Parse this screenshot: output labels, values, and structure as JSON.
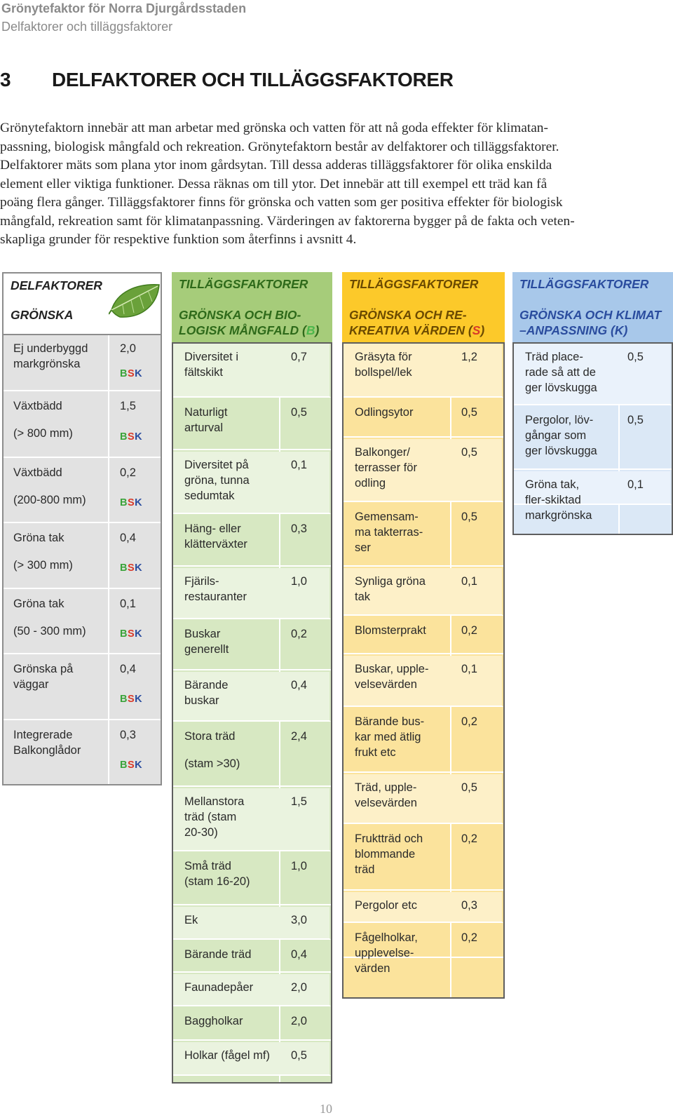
{
  "header": {
    "title": "Grönytefaktor för Norra Djurgårdsstaden",
    "subtitle": "Delfaktorer och tilläggsfaktorer"
  },
  "section": {
    "number": "3",
    "title": "DELFAKTORER OCH TILLÄGGSFAKTORER"
  },
  "intro_lines": [
    "Grönytefaktorn innebär att man arbetar med grönska och vatten för att nå goda effekter för klimatan-",
    "passning, biologisk mångfald och rekreation. Grönytefaktorn består av delfaktorer och tilläggsfaktorer.",
    "Delfaktorer mäts som plana ytor inom gårdsytan. Till dessa adderas tilläggsfaktorer för olika enskilda",
    "element eller viktiga funktioner. Dessa räknas om till ytor. Det innebär att till exempel ett träd kan få",
    "poäng flera gånger. Tilläggsfaktorer finns för grönska och vatten som ger positiva effekter för biologisk",
    "mångfald, rekreation samt för klimatanpassning. Värderingen av faktorerna bygger på de fakta och veten-",
    "skapliga grunder för respektive funktion som återfinns i avsnitt 4."
  ],
  "columns": {
    "delfaktorer": {
      "title": "DELFAKTORER",
      "subtitle": "GRÖNSKA",
      "rows": [
        {
          "label": "Ej underbyggd\nmarkgrönska",
          "value": "2,0"
        },
        {
          "label": "Växtbädd",
          "label2": "(> 800 mm)",
          "value": "1,5"
        },
        {
          "label": "Växtbädd",
          "label2": "(200-800 mm)",
          "value": "0,2"
        },
        {
          "label": "Gröna tak",
          "label2": "(> 300 mm)",
          "value": "0,4"
        },
        {
          "label": "Gröna tak",
          "label2": "(50 - 300 mm)",
          "value": "0,1"
        },
        {
          "label": "Grönska på\nväggar",
          "value": "0,4"
        },
        {
          "label": "Integrerade\nBalkonglådor",
          "value": "0,3"
        }
      ],
      "bsk": {
        "b": "B",
        "s": "S",
        "k": "K"
      },
      "colors": {
        "header": "#ffffff",
        "cell": "#e2e2e2",
        "border": "#8c8c8c"
      }
    },
    "biologisk": {
      "title": "TILLÄGGSFAKTORER",
      "subtitle_a": "GRÖNSKA OCH BIO-",
      "subtitle_b": "LOGISK MÅNGFALD",
      "letter": "B",
      "rows": [
        {
          "label": "Diversitet i\nfältskikt",
          "value": "0,7"
        },
        {
          "label": "Naturligt\narturval",
          "value": "0,5"
        },
        {
          "label": "Diversitet på\ngröna, tunna\nsedumtak",
          "value": "0,1"
        },
        {
          "label": "Häng- eller\nklätterväxter",
          "value": "0,3"
        },
        {
          "label": "Fjärils-\nrestauranter",
          "value": "1,0"
        },
        {
          "label": "Buskar\ngenerellt",
          "value": "0,2"
        },
        {
          "label": "Bärande\nbuskar",
          "value": "0,4"
        },
        {
          "label": "Stora träd",
          "label2": "(stam >30)",
          "value": "2,4"
        },
        {
          "label": "Mellanstora\nträd (stam\n20-30)",
          "value": "1,5"
        },
        {
          "label": "Små  träd\n(stam 16-20)",
          "value": "1,0"
        },
        {
          "label": "Ek",
          "value": "3,0"
        },
        {
          "label": "Bärande träd",
          "value": "0,4"
        },
        {
          "label": "Faunadepåer",
          "value": "2,0"
        },
        {
          "label": "Baggholkar",
          "value": "2,0"
        },
        {
          "label": "Holkar (fågel mf)",
          "value": "0,5"
        }
      ],
      "colors": {
        "header": "#a6cc7a",
        "cell": "#d7e8c2",
        "cell_light": "#eaf3df",
        "letter": "#3aa33a"
      }
    },
    "rekreativa": {
      "title": "TILLÄGGSFAKTORER",
      "subtitle_a": "GRÖNSKA OCH RE-",
      "subtitle_b": "KREATIVA VÄRDEN",
      "letter": "S",
      "rows": [
        {
          "label": "Gräsyta  för\nbollspel/lek",
          "value": "1,2"
        },
        {
          "label": "Odlingsytor",
          "value": "0,5"
        },
        {
          "label": "Balkonger/\nterrasser för\nodling",
          "value": "0,5"
        },
        {
          "label": "Gemensam-\nma takterras-\nser",
          "value": "0,5"
        },
        {
          "label": "Synliga gröna\ntak",
          "value": "0,1"
        },
        {
          "label": "Blomsterprakt",
          "value": "0,2"
        },
        {
          "label": "Buskar, upple-\nvelsevärden",
          "value": "0,1"
        },
        {
          "label": "Bärande bus-\nkar med ätlig\nfrukt etc",
          "value": "0,2"
        },
        {
          "label": "Träd, upple-\nvelsevärden",
          "value": "0,5"
        },
        {
          "label": "Fruktträd och\nblommande\nträd",
          "value": "0,2"
        },
        {
          "label": "Pergolor etc",
          "value": "0,3"
        },
        {
          "label": "Fågelholkar,\nupplevelse-\nvärden",
          "value": "0,2"
        }
      ],
      "colors": {
        "header": "#fcc92a",
        "cell": "#fbe39c",
        "cell_light": "#fdf0c8",
        "letter": "#d83a2a"
      }
    },
    "klimat": {
      "title": "TILLÄGGSFAKTORER",
      "subtitle_a": "GRÖNSKA OCH KLIMAT",
      "subtitle_b": "–ANPASSNING",
      "letter": "K",
      "rows": [
        {
          "label": "Träd place-\nrade så att de\nger lövskugga",
          "value": "0,5"
        },
        {
          "label": "Pergolor, löv-\ngångar som\nger lövskugga",
          "value": "0,5"
        },
        {
          "label": "Gröna tak,\nfler-skiktad\nmarkgrönska",
          "value": "0,1"
        }
      ],
      "colors": {
        "header": "#a8c8ea",
        "cell": "#dbe8f6",
        "cell_light": "#eaf2fb",
        "letter": "#2a4c9e"
      }
    }
  },
  "page_number": "10"
}
